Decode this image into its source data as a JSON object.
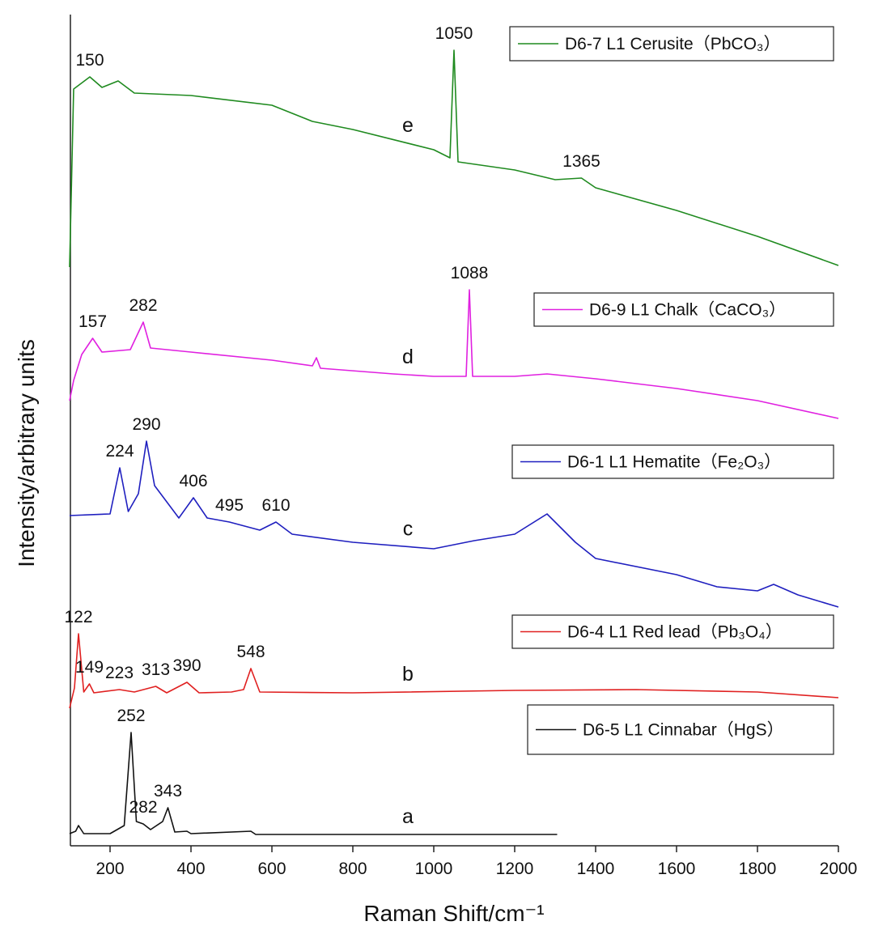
{
  "chart_data": {
    "type": "line",
    "x_label": "Raman Shift/cm⁻¹",
    "y_label": "Intensity/arbitrary units",
    "xlim": [
      100,
      2000
    ],
    "xticks": [
      200,
      400,
      600,
      800,
      1000,
      1200,
      1400,
      1600,
      1800,
      2000
    ],
    "ylim": [
      0,
      1000
    ],
    "series": [
      {
        "name": "D6-7 L1 Cerusite（PbCO₃）",
        "color": "#1f8a1f",
        "label": "e",
        "x": [
          100,
          110,
          150,
          180,
          220,
          260,
          400,
          600,
          700,
          800,
          1000,
          1040,
          1050,
          1060,
          1200,
          1300,
          1365,
          1400,
          1600,
          1800,
          2000
        ],
        "values": [
          715,
          935,
          950,
          937,
          945,
          930,
          927,
          915,
          895,
          885,
          860,
          850,
          983,
          845,
          835,
          823,
          825,
          813,
          785,
          753,
          717
        ],
        "peaks": [
          150,
          1050,
          1365
        ]
      },
      {
        "name": "D6-9 L1 Chalk（CaCO₃）",
        "color": "#e020e0",
        "label": "d",
        "x": [
          100,
          110,
          130,
          157,
          180,
          250,
          282,
          300,
          400,
          600,
          700,
          710,
          720,
          900,
          1000,
          1080,
          1088,
          1096,
          1200,
          1280,
          1400,
          1600,
          1800,
          2000
        ],
        "values": [
          550,
          575,
          607,
          627,
          610,
          613,
          647,
          615,
          610,
          600,
          593,
          603,
          590,
          583,
          580,
          580,
          687,
          580,
          580,
          583,
          577,
          565,
          550,
          528
        ],
        "peaks": [
          157,
          282,
          1088
        ]
      },
      {
        "name": "D6-1 L1 Hematite（Fe₂O₃）",
        "color": "#1f1fbf",
        "label": "c",
        "x": [
          100,
          200,
          224,
          245,
          270,
          290,
          310,
          370,
          406,
          440,
          495,
          570,
          610,
          650,
          800,
          1000,
          1100,
          1200,
          1280,
          1350,
          1400,
          1600,
          1700,
          1800,
          1840,
          1900,
          2000
        ],
        "values": [
          408,
          410,
          467,
          413,
          435,
          500,
          445,
          405,
          430,
          405,
          400,
          390,
          400,
          385,
          375,
          367,
          377,
          385,
          410,
          375,
          355,
          335,
          320,
          315,
          323,
          310,
          295
        ],
        "peaks": [
          224,
          290,
          406,
          495,
          610
        ]
      },
      {
        "name": "D6-4 L1 Red lead（Pb₃O₄）",
        "color": "#e02020",
        "label": "b",
        "x": [
          100,
          112,
          122,
          135,
          149,
          160,
          223,
          260,
          313,
          340,
          390,
          420,
          500,
          530,
          548,
          570,
          800,
          1200,
          1500,
          1800,
          2000
        ],
        "values": [
          170,
          195,
          262,
          190,
          200,
          189,
          193,
          190,
          197,
          189,
          202,
          189,
          190,
          193,
          219,
          190,
          189,
          192,
          193,
          190,
          183
        ],
        "peaks": [
          122,
          149,
          223,
          313,
          390,
          548
        ]
      },
      {
        "name": "D6-5 L1 Cinnabar（HgS）",
        "color": "#111111",
        "label": "a",
        "x": [
          100,
          115,
          122,
          135,
          200,
          235,
          252,
          265,
          282,
          300,
          330,
          343,
          360,
          390,
          400,
          548,
          560,
          1305
        ],
        "values": [
          15,
          18,
          25,
          15,
          15,
          25,
          140,
          30,
          27,
          20,
          30,
          47,
          17,
          18,
          15,
          18,
          14,
          14
        ],
        "peaks": [
          252,
          282,
          343
        ]
      }
    ]
  }
}
